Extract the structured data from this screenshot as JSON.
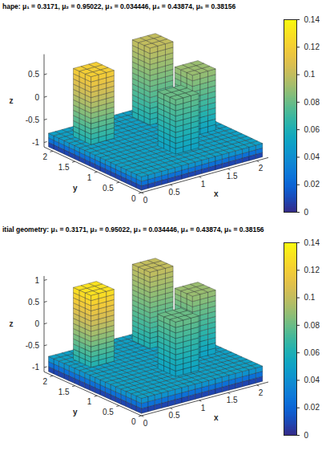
{
  "chart_data": [
    {
      "type": "surface3d",
      "title": "hape: μ₁ = 0.3171, μ₂ = 0.95022, μ₃ = 0.034446, μ₄ = 0.43874, μ₅ = 0.38156",
      "x_label": "x",
      "y_label": "y",
      "z_label": "z",
      "xlim": [
        0,
        2.2
      ],
      "ylim": [
        0,
        2.2
      ],
      "zlim": [
        -1.1,
        0.95
      ],
      "xticks": [
        0,
        0.5,
        1,
        1.5,
        2
      ],
      "yticks": [
        0,
        0.5,
        1,
        1.5,
        2
      ],
      "zticks": [
        -1,
        -0.5,
        0,
        0.5
      ],
      "blocks": [
        {
          "x": [
            0,
            2.1
          ],
          "y": [
            0,
            2.1
          ],
          "z": [
            -1.05,
            -0.75
          ],
          "values": [
            0,
            0.05
          ]
        },
        {
          "x": [
            0.2,
            0.6
          ],
          "y": [
            1.4,
            1.8
          ],
          "z": [
            -0.75,
            0.75
          ],
          "values": [
            0.06,
            0.12
          ]
        },
        {
          "x": [
            1.3,
            1.7
          ],
          "y": [
            1.5,
            1.9
          ],
          "z": [
            -0.75,
            0.95
          ],
          "values": [
            0.06,
            0.1
          ]
        },
        {
          "x": [
            1.5,
            1.9
          ],
          "y": [
            0.8,
            1.2
          ],
          "z": [
            -0.75,
            0.6
          ],
          "values": [
            0.05,
            0.09
          ]
        },
        {
          "x": [
            0.9,
            1.3
          ],
          "y": [
            0.4,
            0.8
          ],
          "z": [
            -0.75,
            0.45
          ],
          "values": [
            0.05,
            0.08
          ]
        }
      ],
      "colorbar": {
        "range": [
          0,
          0.14
        ],
        "ticks": [
          0,
          0.02,
          0.04,
          0.06,
          0.08,
          0.1,
          0.12,
          0.14
        ]
      }
    },
    {
      "type": "surface3d",
      "title": "itial geometry: μ₁ = 0.3171, μ₂ = 0.95022, μ₃ = 0.034446, μ₄ = 0.43874, μ₅ = 0.38156",
      "x_label": "x",
      "y_label": "y",
      "z_label": "z",
      "xlim": [
        0,
        2.2
      ],
      "ylim": [
        0,
        2.2
      ],
      "zlim": [
        -1.1,
        1.1
      ],
      "xticks": [
        0,
        0.5,
        1,
        1.5,
        2
      ],
      "yticks": [
        0,
        0.5,
        1,
        1.5,
        2
      ],
      "zticks": [
        -1,
        -0.5,
        0,
        0.5,
        1
      ],
      "blocks": [
        {
          "x": [
            0,
            2.1
          ],
          "y": [
            0,
            2.1
          ],
          "z": [
            -1.05,
            -0.7
          ],
          "values": [
            0,
            0.05
          ]
        },
        {
          "x": [
            0.2,
            0.6
          ],
          "y": [
            1.4,
            1.8
          ],
          "z": [
            -0.7,
            0.95
          ],
          "values": [
            0.06,
            0.13
          ]
        },
        {
          "x": [
            1.3,
            1.7
          ],
          "y": [
            1.5,
            1.9
          ],
          "z": [
            -0.7,
            1.05
          ],
          "values": [
            0.06,
            0.1
          ]
        },
        {
          "x": [
            1.5,
            1.9
          ],
          "y": [
            0.8,
            1.2
          ],
          "z": [
            -0.7,
            0.75
          ],
          "values": [
            0.05,
            0.09
          ]
        },
        {
          "x": [
            0.9,
            1.3
          ],
          "y": [
            0.4,
            0.8
          ],
          "z": [
            -0.7,
            0.55
          ],
          "values": [
            0.05,
            0.08
          ]
        }
      ],
      "colorbar": {
        "range": [
          0,
          0.14
        ],
        "ticks": [
          0,
          0.02,
          0.04,
          0.06,
          0.08,
          0.1,
          0.12,
          0.14
        ]
      }
    }
  ]
}
